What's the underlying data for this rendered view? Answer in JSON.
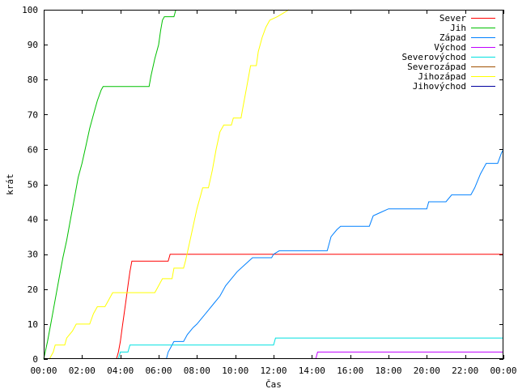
{
  "chart_data": {
    "type": "line",
    "title": "",
    "xlabel": "Čas",
    "ylabel": "krát",
    "xlim": [
      0,
      24
    ],
    "ylim": [
      0,
      100
    ],
    "grid": false,
    "legend_position": "top-right",
    "x_ticks": [
      {
        "value": 0,
        "label": "00:00"
      },
      {
        "value": 2,
        "label": "02:00"
      },
      {
        "value": 4,
        "label": "04:00"
      },
      {
        "value": 6,
        "label": "06:00"
      },
      {
        "value": 8,
        "label": "08:00"
      },
      {
        "value": 10,
        "label": "10:00"
      },
      {
        "value": 12,
        "label": "12:00"
      },
      {
        "value": 14,
        "label": "14:00"
      },
      {
        "value": 16,
        "label": "16:00"
      },
      {
        "value": 18,
        "label": "18:00"
      },
      {
        "value": 20,
        "label": "20:00"
      },
      {
        "value": 22,
        "label": "22:00"
      },
      {
        "value": 24,
        "label": "00:00"
      }
    ],
    "y_ticks": [
      {
        "value": 0,
        "label": "0"
      },
      {
        "value": 10,
        "label": "10"
      },
      {
        "value": 20,
        "label": "20"
      },
      {
        "value": 30,
        "label": "30"
      },
      {
        "value": 40,
        "label": "40"
      },
      {
        "value": 50,
        "label": "50"
      },
      {
        "value": 60,
        "label": "60"
      },
      {
        "value": 70,
        "label": "70"
      },
      {
        "value": 80,
        "label": "80"
      },
      {
        "value": 90,
        "label": "90"
      },
      {
        "value": 100,
        "label": "100"
      }
    ],
    "series": [
      {
        "name": "Sever",
        "color": "#ff0000",
        "points": [
          [
            3.8,
            0
          ],
          [
            3.9,
            2
          ],
          [
            4.0,
            5
          ],
          [
            4.1,
            9
          ],
          [
            4.2,
            13
          ],
          [
            4.3,
            17
          ],
          [
            4.4,
            21
          ],
          [
            4.5,
            25
          ],
          [
            4.6,
            28
          ],
          [
            5.0,
            28
          ],
          [
            6.5,
            28
          ],
          [
            6.6,
            30
          ],
          [
            24,
            30
          ]
        ]
      },
      {
        "name": "Jih",
        "color": "#00c000",
        "points": [
          [
            0,
            0
          ],
          [
            0.2,
            5
          ],
          [
            0.4,
            11
          ],
          [
            0.6,
            17
          ],
          [
            0.8,
            23
          ],
          [
            1.0,
            29
          ],
          [
            1.2,
            34
          ],
          [
            1.4,
            40
          ],
          [
            1.6,
            46
          ],
          [
            1.8,
            52
          ],
          [
            2.0,
            56
          ],
          [
            2.2,
            61
          ],
          [
            2.4,
            66
          ],
          [
            2.6,
            70
          ],
          [
            2.8,
            74
          ],
          [
            3.0,
            77
          ],
          [
            3.1,
            78
          ],
          [
            5.5,
            78
          ],
          [
            5.6,
            81
          ],
          [
            5.8,
            86
          ],
          [
            6.0,
            90
          ],
          [
            6.1,
            94
          ],
          [
            6.2,
            97
          ],
          [
            6.3,
            98
          ],
          [
            6.8,
            98
          ],
          [
            6.9,
            100
          ]
        ]
      },
      {
        "name": "Západ",
        "color": "#0080ff",
        "points": [
          [
            6.4,
            0
          ],
          [
            6.5,
            2
          ],
          [
            6.6,
            3
          ],
          [
            6.8,
            5
          ],
          [
            7.3,
            5
          ],
          [
            7.5,
            7
          ],
          [
            7.8,
            9
          ],
          [
            8.0,
            10
          ],
          [
            8.3,
            12
          ],
          [
            8.6,
            14
          ],
          [
            8.9,
            16
          ],
          [
            9.2,
            18
          ],
          [
            9.5,
            21
          ],
          [
            9.8,
            23
          ],
          [
            10.1,
            25
          ],
          [
            10.5,
            27
          ],
          [
            10.9,
            29
          ],
          [
            11.9,
            29
          ],
          [
            12.0,
            30
          ],
          [
            12.3,
            31
          ],
          [
            14.8,
            31
          ],
          [
            15.0,
            35
          ],
          [
            15.3,
            37
          ],
          [
            15.5,
            38
          ],
          [
            17.0,
            38
          ],
          [
            17.2,
            41
          ],
          [
            17.6,
            42
          ],
          [
            18.0,
            43
          ],
          [
            20.0,
            43
          ],
          [
            20.1,
            45
          ],
          [
            21.0,
            45
          ],
          [
            21.3,
            47
          ],
          [
            22.3,
            47
          ],
          [
            22.5,
            49
          ],
          [
            22.8,
            53
          ],
          [
            23.1,
            56
          ],
          [
            23.7,
            56
          ],
          [
            23.9,
            59
          ],
          [
            24,
            60
          ]
        ]
      },
      {
        "name": "Východ",
        "color": "#c000ff",
        "points": [
          [
            14.2,
            0
          ],
          [
            14.3,
            2
          ],
          [
            24,
            2
          ]
        ]
      },
      {
        "name": "Severovýchod",
        "color": "#00e0e0",
        "points": [
          [
            3.9,
            0
          ],
          [
            4.0,
            2
          ],
          [
            4.4,
            2
          ],
          [
            4.5,
            4
          ],
          [
            12.0,
            4
          ],
          [
            12.1,
            6
          ],
          [
            24,
            6
          ]
        ]
      },
      {
        "name": "Severozápad",
        "color": "#a05000",
        "points": []
      },
      {
        "name": "Jihozápad",
        "color": "#ffff00",
        "points": [
          [
            0.3,
            0
          ],
          [
            0.5,
            2
          ],
          [
            0.6,
            4
          ],
          [
            1.1,
            4
          ],
          [
            1.2,
            6
          ],
          [
            1.5,
            8
          ],
          [
            1.7,
            10
          ],
          [
            2.4,
            10
          ],
          [
            2.6,
            13
          ],
          [
            2.8,
            15
          ],
          [
            3.2,
            15
          ],
          [
            3.4,
            17
          ],
          [
            3.6,
            19
          ],
          [
            5.8,
            19
          ],
          [
            6.0,
            21
          ],
          [
            6.2,
            23
          ],
          [
            6.7,
            23
          ],
          [
            6.8,
            26
          ],
          [
            7.3,
            26
          ],
          [
            7.4,
            28
          ],
          [
            7.6,
            33
          ],
          [
            7.8,
            38
          ],
          [
            8.0,
            43
          ],
          [
            8.2,
            47
          ],
          [
            8.3,
            49
          ],
          [
            8.6,
            49
          ],
          [
            8.8,
            54
          ],
          [
            9.0,
            60
          ],
          [
            9.2,
            65
          ],
          [
            9.4,
            67
          ],
          [
            9.8,
            67
          ],
          [
            9.9,
            69
          ],
          [
            10.3,
            69
          ],
          [
            10.4,
            72
          ],
          [
            10.6,
            78
          ],
          [
            10.8,
            84
          ],
          [
            11.1,
            84
          ],
          [
            11.2,
            88
          ],
          [
            11.4,
            92
          ],
          [
            11.6,
            95
          ],
          [
            11.8,
            97
          ],
          [
            12.2,
            98
          ],
          [
            12.5,
            99
          ],
          [
            12.8,
            100
          ]
        ]
      },
      {
        "name": "Jihovýchod",
        "color": "#0000a0",
        "points": []
      }
    ]
  }
}
